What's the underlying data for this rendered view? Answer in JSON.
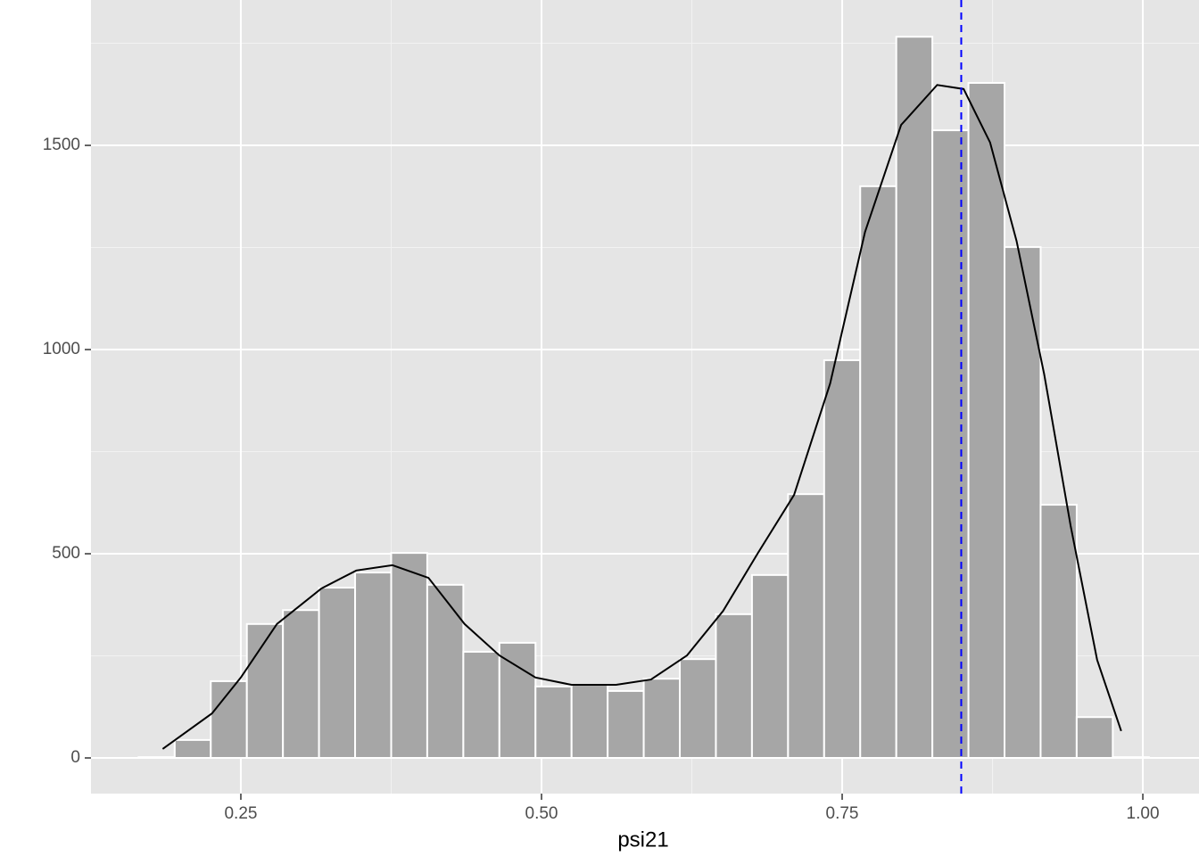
{
  "chart_data": {
    "type": "histogram",
    "x_label": "psi21",
    "bins": [
      0.165,
      0.195,
      0.225,
      0.255,
      0.285,
      0.315,
      0.345,
      0.375,
      0.405,
      0.435,
      0.465,
      0.495,
      0.525,
      0.555,
      0.585,
      0.615,
      0.645,
      0.675,
      0.705,
      0.735,
      0.765,
      0.795,
      0.825,
      0.855,
      0.885,
      0.915,
      0.945,
      0.975,
      1.005
    ],
    "values": [
      2,
      44,
      188,
      328,
      362,
      417,
      454,
      502,
      424,
      260,
      282,
      175,
      179,
      164,
      194,
      242,
      352,
      448,
      646,
      974,
      1400,
      1766,
      1537,
      1653,
      1251,
      620,
      100,
      2
    ],
    "color": "#a6a6a6",
    "edge_color": "#ffffff",
    "density": {
      "color": "#000000",
      "x": [
        0.185,
        0.226,
        0.25,
        0.28,
        0.317,
        0.346,
        0.376,
        0.406,
        0.436,
        0.465,
        0.495,
        0.525,
        0.562,
        0.591,
        0.621,
        0.651,
        0.68,
        0.71,
        0.74,
        0.769,
        0.799,
        0.829,
        0.851,
        0.873,
        0.895,
        0.918,
        0.94,
        0.962,
        0.982
      ],
      "y": [
        22,
        109,
        197,
        328,
        415,
        459,
        472,
        441,
        328,
        251,
        197,
        179,
        179,
        192,
        251,
        360,
        502,
        644,
        917,
        1288,
        1550,
        1648,
        1638,
        1507,
        1266,
        939,
        568,
        240,
        66
      ]
    },
    "vline": {
      "value": 0.849,
      "color": "#0000ff"
    },
    "xlim": [
      0.1254,
      1.0467
    ],
    "ylim": [
      -87.3,
      1856
    ],
    "xticks": [
      {
        "value": 0.25,
        "label": "0.25"
      },
      {
        "value": 0.5,
        "label": "0.50"
      },
      {
        "value": 0.75,
        "label": "0.75"
      },
      {
        "value": 1.0,
        "label": "1.00"
      }
    ],
    "yticks": [
      0,
      500,
      1000,
      1500
    ],
    "xminor": [
      0.375,
      0.625,
      0.875
    ],
    "yminor": [
      250,
      750,
      1250,
      1750
    ],
    "grid": true
  }
}
